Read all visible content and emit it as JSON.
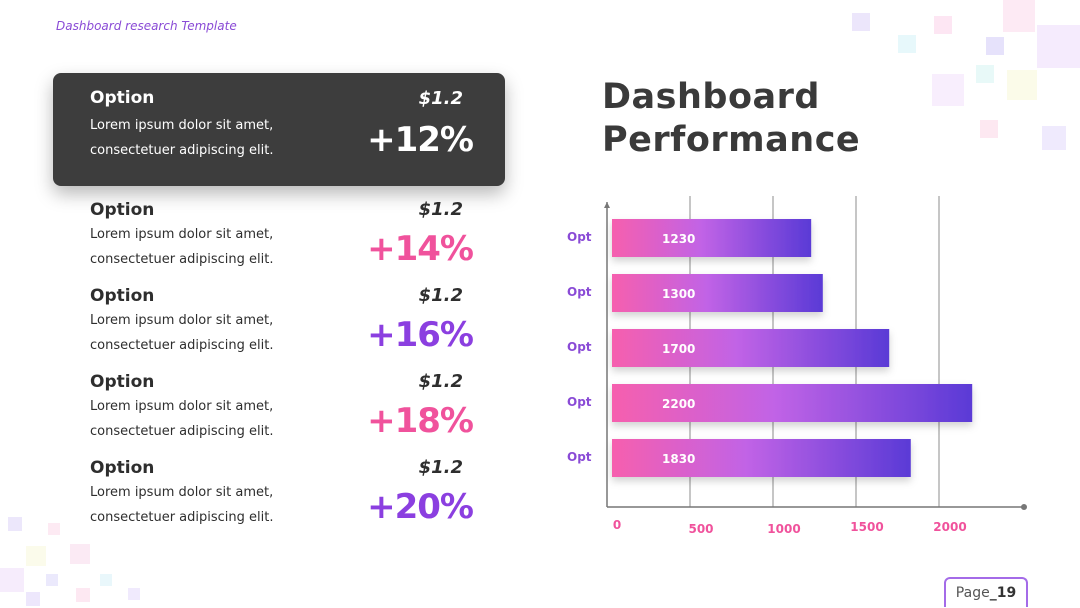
{
  "header": {
    "template_label": "Dashboard research Template"
  },
  "options": [
    {
      "title": "Option",
      "line1": "Lorem ipsum dolor sit amet,",
      "line2": "consectetuer adipiscing elit.",
      "price": "$1.2",
      "percent": "+12%",
      "color": "#ffffff",
      "highlighted": true
    },
    {
      "title": "Option",
      "line1": "Lorem ipsum dolor sit amet,",
      "line2": "consectetuer adipiscing elit.",
      "price": "$1.2",
      "percent": "+14%",
      "color": "#f0529c",
      "highlighted": false
    },
    {
      "title": "Option",
      "line1": "Lorem ipsum dolor sit amet,",
      "line2": "consectetuer adipiscing elit.",
      "price": "$1.2",
      "percent": "+16%",
      "color": "#8b3fe0",
      "highlighted": false
    },
    {
      "title": "Option",
      "line1": "Lorem ipsum dolor sit amet,",
      "line2": "consectetuer adipiscing elit.",
      "price": "$1.2",
      "percent": "+18%",
      "color": "#f0529c",
      "highlighted": false
    },
    {
      "title": "Option",
      "line1": "Lorem ipsum dolor sit amet,",
      "line2": "consectetuer adipiscing elit.",
      "price": "$1.2",
      "percent": "+20%",
      "color": "#8b3fe0",
      "highlighted": false
    }
  ],
  "performance": {
    "title_line1": "Dashboard",
    "title_line2": "Performance"
  },
  "chart_data": {
    "type": "bar",
    "orientation": "horizontal",
    "categories": [
      "Opt",
      "Opt",
      "Opt",
      "Opt",
      "Opt"
    ],
    "values": [
      1230,
      1300,
      1700,
      2200,
      1830
    ],
    "x_ticks": [
      0,
      500,
      1000,
      1500,
      2000
    ],
    "xlim": [
      0,
      2500
    ],
    "grid": true,
    "bar_gradient": [
      "#f65fae",
      "#c163e6",
      "#5a3ad6"
    ],
    "category_color": "#8a4bd6",
    "tick_color": "#f0529c",
    "title": "",
    "xlabel": "",
    "ylabel": ""
  },
  "footer": {
    "page_prefix": "Page",
    "page_number": "_19"
  }
}
